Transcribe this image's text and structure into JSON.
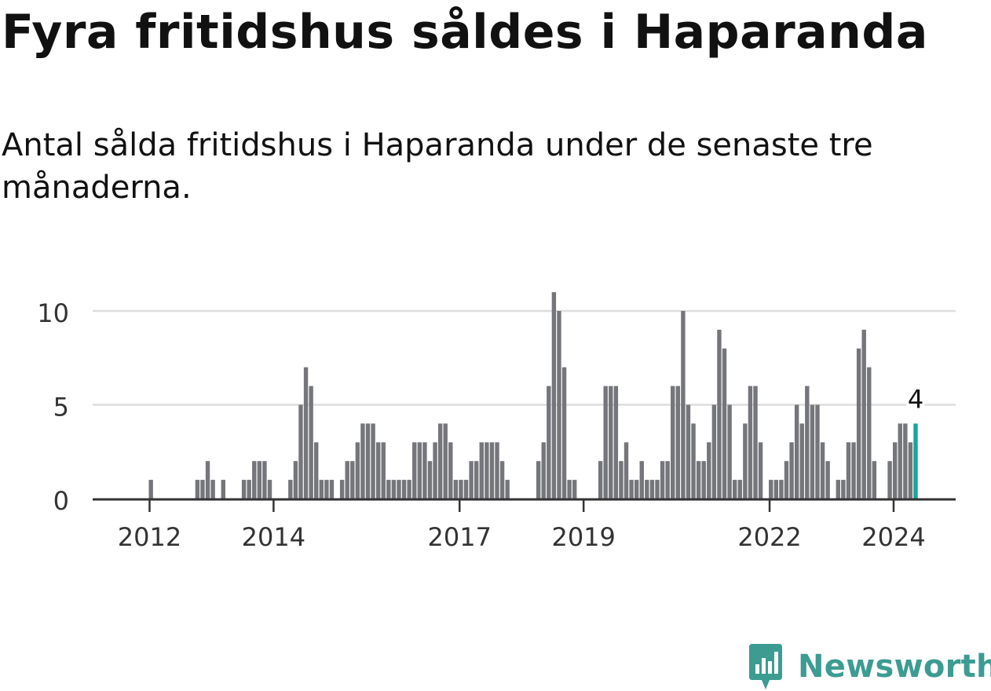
{
  "title": "Fyra fritidshus såldes i Haparanda",
  "subtitle": "Antal sålda fritidshus i Haparanda under de senaste tre månaderna.",
  "brand": {
    "name": "Newsworthy",
    "color": "#3c9c92",
    "icon": "newsworthy-logo-icon"
  },
  "colors": {
    "bar": "#75767b",
    "highlight": "#17a599",
    "grid": "#dddddd",
    "axis": "#333333"
  },
  "chart_data": {
    "type": "bar",
    "x_start": "2011-01",
    "x_interval": "month",
    "ylim": [
      0,
      11
    ],
    "yticks": [
      0,
      5,
      10
    ],
    "xticks": [
      {
        "label": "2012",
        "month_index": 12
      },
      {
        "label": "2014",
        "month_index": 36
      },
      {
        "label": "2017",
        "month_index": 72
      },
      {
        "label": "2019",
        "month_index": 96
      },
      {
        "label": "2022",
        "month_index": 132
      },
      {
        "label": "2024",
        "month_index": 156
      }
    ],
    "values": [
      0,
      0,
      0,
      0,
      0,
      0,
      0,
      0,
      0,
      0,
      0,
      0,
      1,
      0,
      0,
      0,
      0,
      0,
      0,
      0,
      0,
      1,
      1,
      2,
      1,
      0,
      1,
      0,
      0,
      0,
      1,
      1,
      2,
      2,
      2,
      1,
      0,
      0,
      0,
      1,
      2,
      5,
      7,
      6,
      3,
      1,
      1,
      1,
      0,
      1,
      2,
      2,
      3,
      4,
      4,
      4,
      3,
      3,
      1,
      1,
      1,
      1,
      1,
      3,
      3,
      3,
      2,
      3,
      4,
      4,
      3,
      1,
      1,
      1,
      2,
      2,
      3,
      3,
      3,
      3,
      2,
      1,
      0,
      0,
      0,
      0,
      0,
      2,
      3,
      6,
      11,
      10,
      7,
      1,
      1,
      0,
      0,
      0,
      0,
      2,
      6,
      6,
      6,
      2,
      3,
      1,
      1,
      2,
      1,
      1,
      1,
      2,
      2,
      6,
      6,
      10,
      5,
      4,
      2,
      2,
      3,
      5,
      9,
      8,
      5,
      1,
      1,
      4,
      6,
      6,
      3,
      0,
      1,
      1,
      1,
      2,
      3,
      5,
      4,
      6,
      5,
      5,
      3,
      2,
      0,
      1,
      1,
      3,
      3,
      8,
      9,
      7,
      2,
      0,
      0,
      2,
      3,
      4,
      4,
      3,
      4
    ],
    "highlight": {
      "index": 160,
      "value": 4,
      "label": "4"
    }
  }
}
